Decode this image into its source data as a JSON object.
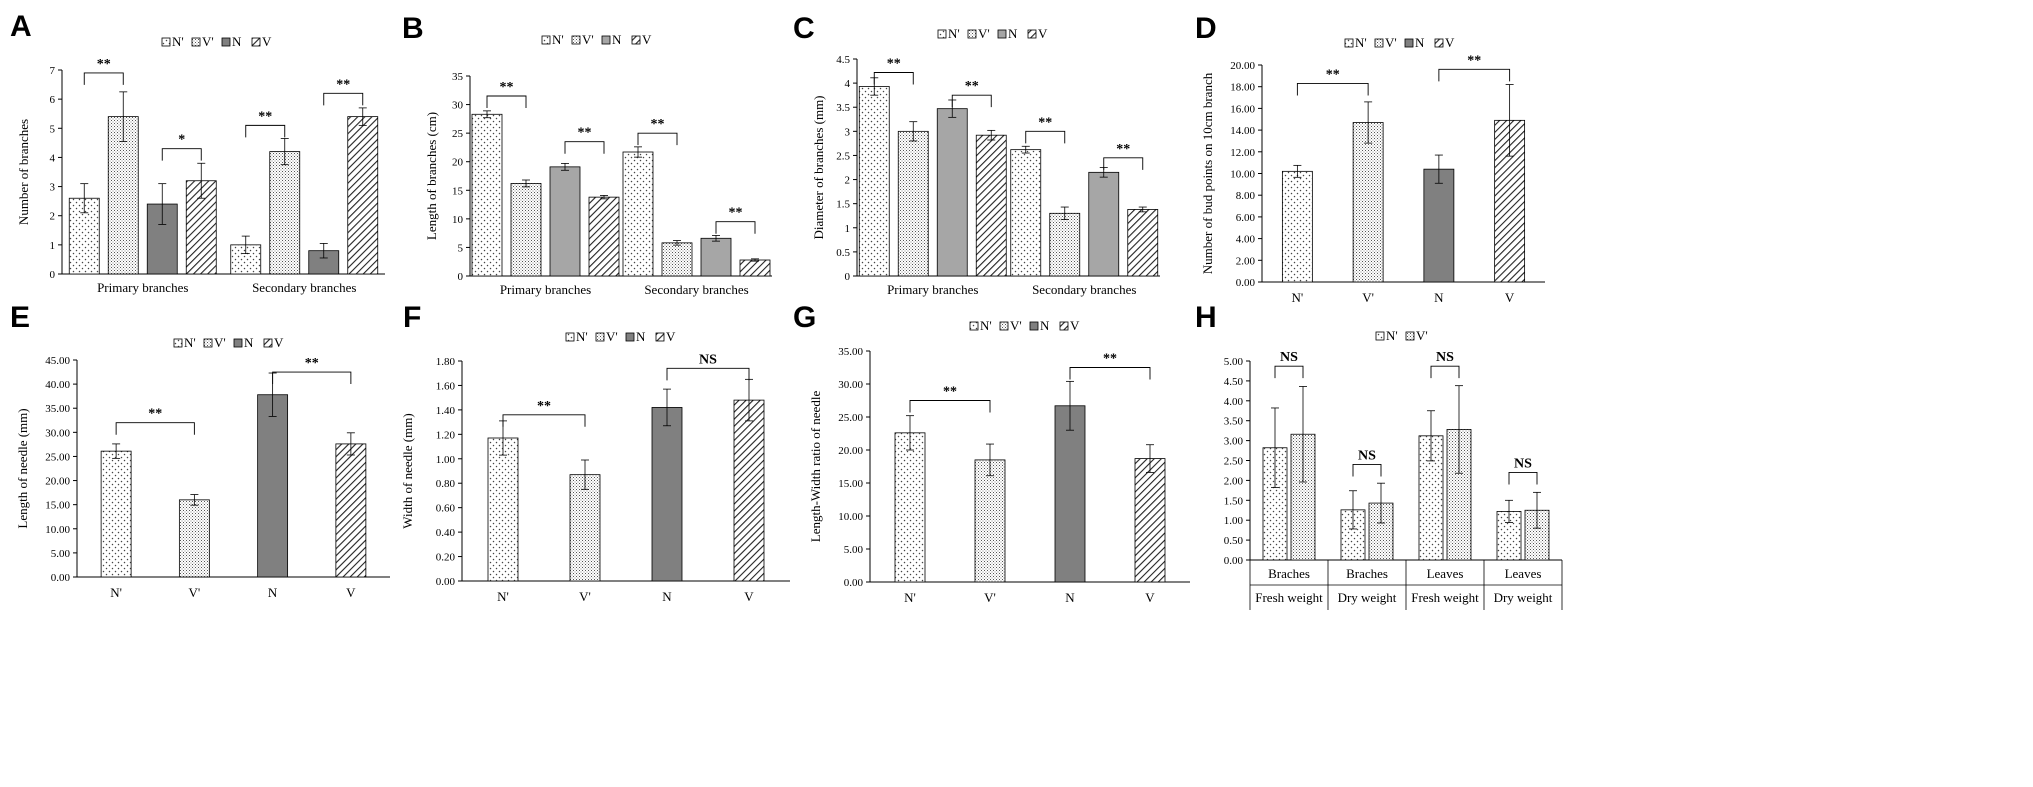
{
  "patterns": {
    "N_prime": {
      "fill": "#ffffff",
      "style": "dots"
    },
    "V_prime": {
      "fill": "#ffffff",
      "style": "fine-dots"
    },
    "N": {
      "fill": "#808080",
      "style": "solid"
    },
    "V": {
      "fill": "#ffffff",
      "style": "hatch"
    },
    "grey": {
      "fill": "#a6a6a6",
      "style": "solid"
    }
  },
  "chart_data": [
    {
      "id": "A",
      "panel_label": "A",
      "type": "bar",
      "legend": [
        "N'",
        "V'",
        "N",
        "V"
      ],
      "categories": [
        "Primary branches",
        "Secondary branches"
      ],
      "series": [
        {
          "name": "N'",
          "values": [
            2.6,
            1.0
          ],
          "errors": [
            0.5,
            0.3
          ],
          "pattern": "N_prime"
        },
        {
          "name": "V'",
          "values": [
            5.4,
            4.2
          ],
          "errors": [
            0.85,
            0.45
          ],
          "pattern": "V_prime"
        },
        {
          "name": "N",
          "values": [
            2.4,
            0.8
          ],
          "errors": [
            0.7,
            0.25
          ],
          "pattern": "N"
        },
        {
          "name": "V",
          "values": [
            3.2,
            5.4
          ],
          "errors": [
            0.6,
            0.3
          ],
          "pattern": "V"
        }
      ],
      "ylabel": "Number of branches",
      "ylim": [
        0,
        7
      ],
      "yticks": [
        0,
        1,
        2,
        3,
        4,
        5,
        6,
        7
      ],
      "ytick_decimals": 0,
      "significance": [
        {
          "label": "**",
          "from": [
            0,
            0
          ],
          "to": [
            0,
            1
          ],
          "height": 6.9
        },
        {
          "label": "*",
          "from": [
            0,
            2
          ],
          "to": [
            0,
            3
          ],
          "height": 4.3
        },
        {
          "label": "**",
          "from": [
            1,
            0
          ],
          "to": [
            1,
            1
          ],
          "height": 5.1
        },
        {
          "label": "**",
          "from": [
            1,
            2
          ],
          "to": [
            1,
            3
          ],
          "height": 6.2
        }
      ]
    },
    {
      "id": "B",
      "panel_label": "B",
      "type": "bar",
      "legend": [
        "N'",
        "V'",
        "N",
        "V"
      ],
      "categories": [
        "Primary branches",
        "Secondary branches"
      ],
      "series": [
        {
          "name": "N'",
          "values": [
            28.3,
            21.7
          ],
          "errors": [
            0.6,
            0.9
          ],
          "pattern": "N_prime"
        },
        {
          "name": "V'",
          "values": [
            16.2,
            5.8
          ],
          "errors": [
            0.6,
            0.4
          ],
          "pattern": "V_prime"
        },
        {
          "name": "N",
          "values": [
            19.1,
            6.6
          ],
          "errors": [
            0.6,
            0.5
          ],
          "pattern": "grey"
        },
        {
          "name": "V",
          "values": [
            13.8,
            2.8
          ],
          "errors": [
            0.3,
            0.2
          ],
          "pattern": "V"
        }
      ],
      "ylabel": "Length of branches (cm)",
      "ylim": [
        0,
        35
      ],
      "yticks": [
        0,
        5,
        10,
        15,
        20,
        25,
        30,
        35
      ],
      "ytick_decimals": 0,
      "significance": [
        {
          "label": "**",
          "from": [
            0,
            0
          ],
          "to": [
            0,
            1
          ],
          "height": 31.5
        },
        {
          "label": "**",
          "from": [
            0,
            2
          ],
          "to": [
            0,
            3
          ],
          "height": 23.5
        },
        {
          "label": "**",
          "from": [
            1,
            0
          ],
          "to": [
            1,
            1
          ],
          "height": 25.0
        },
        {
          "label": "**",
          "from": [
            1,
            2
          ],
          "to": [
            1,
            3
          ],
          "height": 9.5
        }
      ]
    },
    {
      "id": "C",
      "panel_label": "C",
      "type": "bar",
      "legend": [
        "N'",
        "V'",
        "N",
        "V"
      ],
      "categories": [
        "Primary branches",
        "Secondary branches"
      ],
      "series": [
        {
          "name": "N'",
          "values": [
            3.93,
            2.62
          ],
          "errors": [
            0.18,
            0.07
          ],
          "pattern": "N_prime"
        },
        {
          "name": "V'",
          "values": [
            3.0,
            1.3
          ],
          "errors": [
            0.2,
            0.13
          ],
          "pattern": "V_prime"
        },
        {
          "name": "N",
          "values": [
            3.47,
            2.15
          ],
          "errors": [
            0.18,
            0.1
          ],
          "pattern": "grey"
        },
        {
          "name": "V",
          "values": [
            2.92,
            1.38
          ],
          "errors": [
            0.1,
            0.05
          ],
          "pattern": "V"
        }
      ],
      "ylabel": "Diameter of branches (mm)",
      "ylim": [
        0,
        4.5
      ],
      "yticks": [
        0,
        0.5,
        1,
        1.5,
        2,
        2.5,
        3,
        3.5,
        4,
        4.5
      ],
      "ytick_decimals": -1,
      "significance": [
        {
          "label": "**",
          "from": [
            0,
            0
          ],
          "to": [
            0,
            1
          ],
          "height": 4.22
        },
        {
          "label": "**",
          "from": [
            0,
            2
          ],
          "to": [
            0,
            3
          ],
          "height": 3.75
        },
        {
          "label": "**",
          "from": [
            1,
            0
          ],
          "to": [
            1,
            1
          ],
          "height": 3.0
        },
        {
          "label": "**",
          "from": [
            1,
            2
          ],
          "to": [
            1,
            3
          ],
          "height": 2.45
        }
      ]
    },
    {
      "id": "D",
      "panel_label": "D",
      "type": "bar",
      "legend": [
        "N'",
        "V'",
        "N",
        "V"
      ],
      "categories": [
        "N'",
        "V'",
        "N",
        "V"
      ],
      "values": [
        10.2,
        14.7,
        10.4,
        14.9
      ],
      "errors": [
        0.55,
        1.9,
        1.3,
        3.3
      ],
      "patterns": [
        "N_prime",
        "V_prime",
        "N",
        "V"
      ],
      "ylabel": "Number of bud points on 10cm branch",
      "ylim": [
        0,
        20
      ],
      "yticks": [
        0,
        2,
        4,
        6,
        8,
        10,
        12,
        14,
        16,
        18,
        20
      ],
      "ytick_decimals": 2,
      "significance": [
        {
          "label": "**",
          "from": 0,
          "to": 1,
          "height": 18.3
        },
        {
          "label": "**",
          "from": 2,
          "to": 3,
          "height": 19.6
        }
      ]
    },
    {
      "id": "E",
      "panel_label": "E",
      "type": "bar",
      "legend": [
        "N'",
        "V'",
        "N",
        "V"
      ],
      "categories": [
        "N'",
        "V'",
        "N",
        "V"
      ],
      "values": [
        26.1,
        16.0,
        37.8,
        27.6
      ],
      "errors": [
        1.5,
        1.1,
        4.5,
        2.3
      ],
      "patterns": [
        "N_prime",
        "V_prime",
        "N",
        "V"
      ],
      "ylabel": "Length of needle (mm)",
      "ylim": [
        0,
        45
      ],
      "yticks": [
        0,
        5,
        10,
        15,
        20,
        25,
        30,
        35,
        40,
        45
      ],
      "ytick_decimals": 2,
      "significance": [
        {
          "label": "**",
          "from": 0,
          "to": 1,
          "height": 32.0
        },
        {
          "label": "**",
          "from": 2,
          "to": 3,
          "height": 42.5
        }
      ]
    },
    {
      "id": "F",
      "panel_label": "F",
      "type": "bar",
      "legend": [
        "N'",
        "V'",
        "N",
        "V"
      ],
      "categories": [
        "N'",
        "V'",
        "N",
        "V"
      ],
      "values": [
        1.17,
        0.87,
        1.42,
        1.48
      ],
      "errors": [
        0.14,
        0.12,
        0.15,
        0.17
      ],
      "patterns": [
        "N_prime",
        "V_prime",
        "N",
        "V"
      ],
      "ylabel": "Width of needle (mm)",
      "ylim": [
        0,
        1.8
      ],
      "yticks": [
        0,
        0.2,
        0.4,
        0.6,
        0.8,
        1.0,
        1.2,
        1.4,
        1.6,
        1.8
      ],
      "ytick_decimals": 2,
      "significance": [
        {
          "label": "**",
          "from": 0,
          "to": 1,
          "height": 1.36
        },
        {
          "label": "NS",
          "from": 2,
          "to": 3,
          "height": 1.74
        }
      ]
    },
    {
      "id": "G",
      "panel_label": "G",
      "type": "bar",
      "legend": [
        "N'",
        "V'",
        "N",
        "V"
      ],
      "categories": [
        "N'",
        "V'",
        "N",
        "V"
      ],
      "values": [
        22.6,
        18.5,
        26.7,
        18.7
      ],
      "errors": [
        2.6,
        2.4,
        3.7,
        2.1
      ],
      "patterns": [
        "N_prime",
        "V_prime",
        "N",
        "V"
      ],
      "ylabel": "Length-Width ratio of needle",
      "ylim": [
        0,
        35
      ],
      "yticks": [
        0,
        5,
        10,
        15,
        20,
        25,
        30,
        35
      ],
      "ytick_decimals": 2,
      "significance": [
        {
          "label": "**",
          "from": 0,
          "to": 1,
          "height": 27.5
        },
        {
          "label": "**",
          "from": 2,
          "to": 3,
          "height": 32.5
        }
      ]
    },
    {
      "id": "H",
      "panel_label": "H",
      "type": "bar",
      "legend": [
        "N'",
        "V'"
      ],
      "categories": [
        "Braches",
        "Braches",
        "Leaves",
        "Leaves"
      ],
      "group_labels": [
        "Fresh weight",
        "Dry weight",
        "Fresh weight",
        "Dry weight"
      ],
      "series": [
        {
          "name": "N'",
          "values": [
            2.82,
            1.26,
            3.12,
            1.22
          ],
          "errors": [
            1.0,
            0.48,
            0.63,
            0.28
          ],
          "pattern": "N_prime"
        },
        {
          "name": "V'",
          "values": [
            3.16,
            1.43,
            3.28,
            1.25
          ],
          "errors": [
            1.2,
            0.5,
            1.1,
            0.45
          ],
          "pattern": "V_prime"
        }
      ],
      "ylabel": "",
      "ylim": [
        0,
        5
      ],
      "yticks": [
        0,
        0.5,
        1,
        1.5,
        2,
        2.5,
        3,
        3.5,
        4,
        4.5,
        5
      ],
      "ytick_decimals": 2,
      "significance": [
        {
          "label": "NS",
          "from": [
            0,
            0
          ],
          "to": [
            0,
            1
          ],
          "height": 4.87
        },
        {
          "label": "NS",
          "from": [
            1,
            0
          ],
          "to": [
            1,
            1
          ],
          "height": 2.4
        },
        {
          "label": "NS",
          "from": [
            2,
            0
          ],
          "to": [
            2,
            1
          ],
          "height": 4.87
        },
        {
          "label": "NS",
          "from": [
            3,
            0
          ],
          "to": [
            3,
            1
          ],
          "height": 2.2
        }
      ]
    }
  ]
}
